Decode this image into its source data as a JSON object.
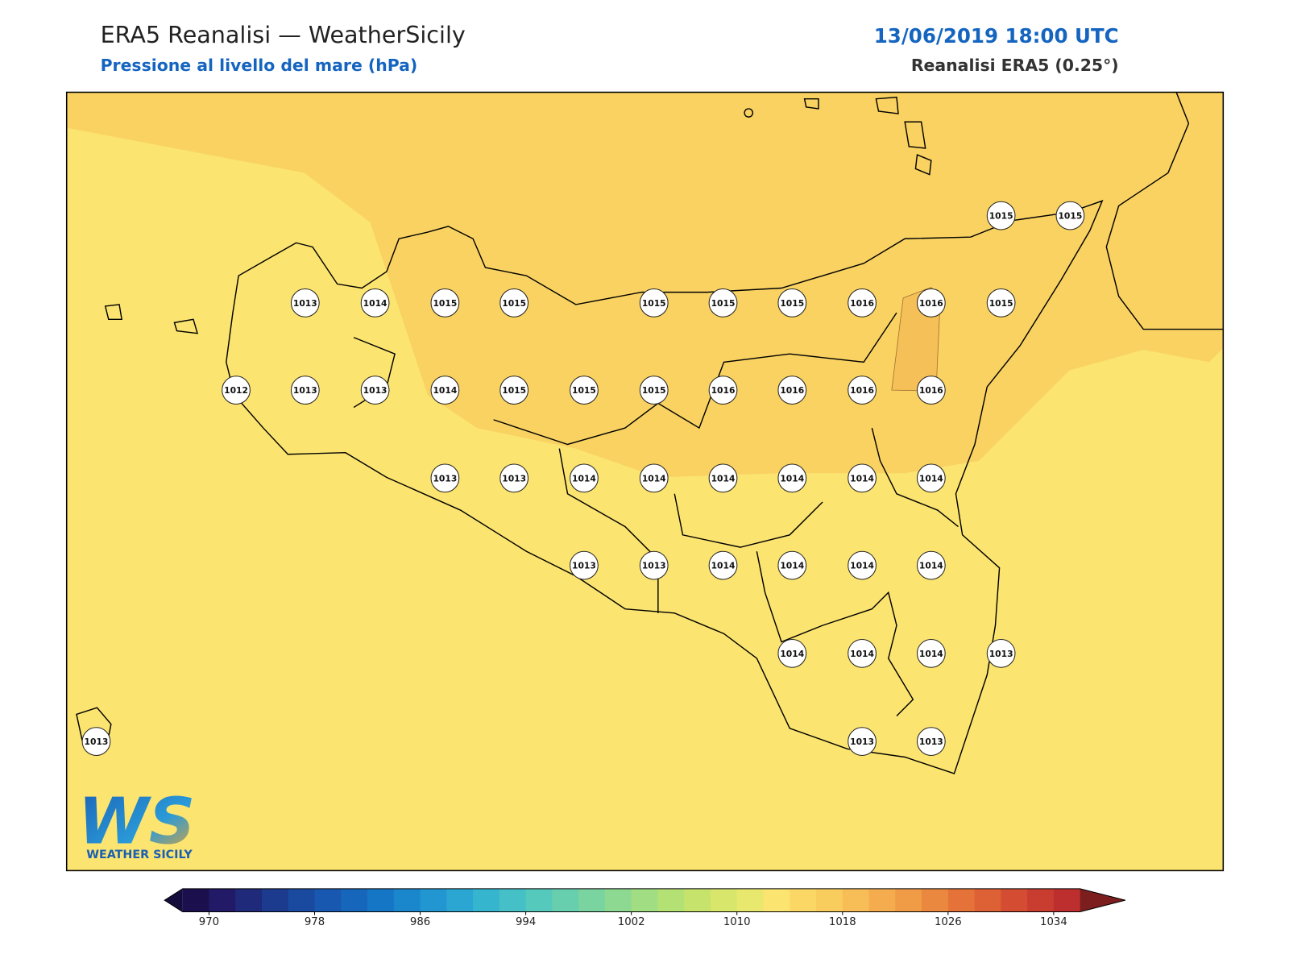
{
  "header": {
    "title": "ERA5 Reanalisi — WeatherSicily",
    "subtitle": "Pressione al livello del mare (hPa)",
    "datetime": "13/06/2019 18:00 UTC",
    "source": "Reanalisi ERA5 (0.25°)"
  },
  "stations": [
    1015,
    1015,
    1013,
    1014,
    1015,
    1015,
    1015,
    1015,
    1015,
    1016,
    1016,
    1015,
    1012,
    1013,
    1013,
    1014,
    1015,
    1015,
    1015,
    1016,
    1016,
    1016,
    1016,
    1013,
    1013,
    1014,
    1014,
    1014,
    1014,
    1014,
    1014,
    1013,
    1013,
    1014,
    1014,
    1014,
    1014,
    1014,
    1014,
    1014,
    1013,
    1013,
    1013,
    1013
  ],
  "colorbar": {
    "range": [
      968,
      1036
    ],
    "ticks": [
      970,
      978,
      986,
      994,
      1002,
      1010,
      1018,
      1026,
      1034
    ],
    "palette": [
      "#1b0f4e",
      "#221a66",
      "#1f2a7a",
      "#1c3a8e",
      "#1a49a0",
      "#1858b0",
      "#1666bc",
      "#1676c6",
      "#1a86cc",
      "#2296d0",
      "#2ba6d2",
      "#36b5cf",
      "#45c0c6",
      "#55c9bb",
      "#67cfae",
      "#7ad4a0",
      "#8ed991",
      "#a1dd82",
      "#b4e174",
      "#c6e46c",
      "#d8e76c",
      "#e9e86e",
      "#fbe470",
      "#fbd866",
      "#f9cc5e",
      "#f7bd56",
      "#f4ac4e",
      "#f09b46",
      "#eb883f",
      "#e57339",
      "#de6035",
      "#d44c32",
      "#c93c30",
      "#bd2f2f"
    ],
    "extend_colors": [
      "#150c3e",
      "#7c1e1e"
    ]
  },
  "logo": {
    "mark": "WS",
    "text": "WEATHER SICILY"
  }
}
